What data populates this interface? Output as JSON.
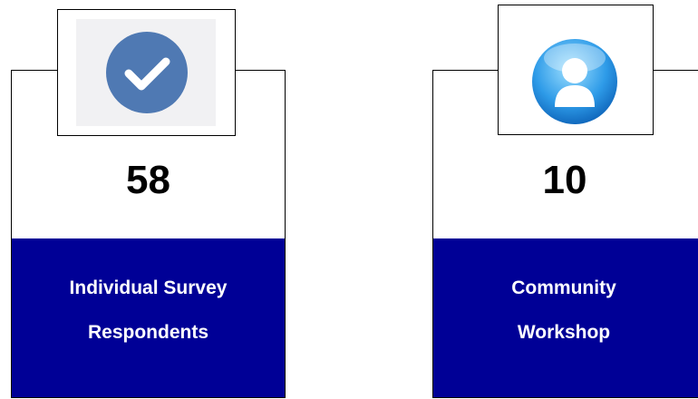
{
  "cards": [
    {
      "value": "58",
      "label_lines": [
        "Individual Survey",
        "Respondents"
      ]
    },
    {
      "value": "10",
      "label_lines": [
        "Community",
        "Workshop"
      ]
    }
  ]
}
